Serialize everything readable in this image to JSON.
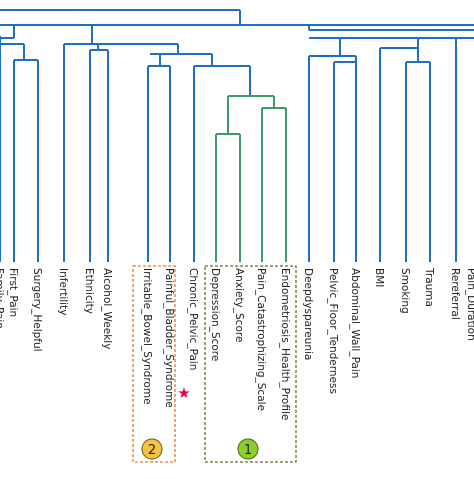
{
  "colors": {
    "blue": "#1f6fc2",
    "green": "#3e9a68",
    "orange_box": "#e07a2e",
    "olive_box": "#6b6b2a",
    "badge1": "#8ccf2a",
    "badge2": "#f6c23e",
    "star": "#e4004b",
    "label": "#222222"
  },
  "leaves": [
    "Family_Pain",
    "First_Pain",
    "Surgery_Helpful",
    "Infertility",
    "Ethnicity",
    "Alcohol_Weekly",
    "Irritable_Bowel_Syndrome",
    "Painful_Bladder_Syndrome",
    "Chronic_Pelvic_Pain",
    "Depression_Score",
    "Anxiety_Score",
    "Pain_Catastrophizing_Scale",
    "Endometriosis_Health_Profile",
    "Deepdyspareunia",
    "Pelvic_Floor_Tenderness",
    "Abdominal_Wall_Pain",
    "BMI",
    "Smoking",
    "Trauma",
    "Rereferral",
    "Pain_Duration"
  ],
  "annotations": {
    "badge1": "1",
    "badge2": "2",
    "star": "★"
  }
}
